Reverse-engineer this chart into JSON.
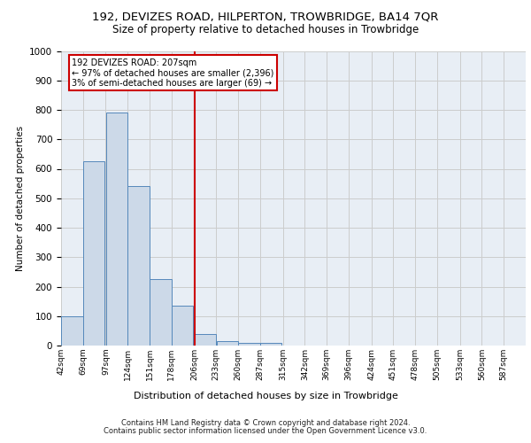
{
  "title_line1": "192, DEVIZES ROAD, HILPERTON, TROWBRIDGE, BA14 7QR",
  "title_line2": "Size of property relative to detached houses in Trowbridge",
  "xlabel": "Distribution of detached houses by size in Trowbridge",
  "ylabel": "Number of detached properties",
  "footer_line1": "Contains HM Land Registry data © Crown copyright and database right 2024.",
  "footer_line2": "Contains public sector information licensed under the Open Government Licence v3.0.",
  "bins": [
    42,
    69,
    97,
    124,
    151,
    178,
    206,
    233,
    260,
    287,
    315,
    342,
    369,
    396,
    424,
    451,
    478,
    505,
    533,
    560,
    587
  ],
  "bar_values": [
    100,
    625,
    790,
    540,
    225,
    135,
    40,
    15,
    10,
    10,
    0,
    0,
    0,
    0,
    0,
    0,
    0,
    0,
    0,
    0
  ],
  "bar_color": "#ccd9e8",
  "bar_edge_color": "#5588bb",
  "property_bin_index": 6,
  "annotation_title": "192 DEVIZES ROAD: 207sqm",
  "annotation_line1": "← 97% of detached houses are smaller (2,396)",
  "annotation_line2": "3% of semi-detached houses are larger (69) →",
  "annotation_box_color": "#ffffff",
  "annotation_box_edge_color": "#cc0000",
  "vline_color": "#cc0000",
  "ylim": [
    0,
    1000
  ],
  "yticks": [
    0,
    100,
    200,
    300,
    400,
    500,
    600,
    700,
    800,
    900,
    1000
  ],
  "grid_color": "#cccccc",
  "bg_color": "#e8eef5"
}
